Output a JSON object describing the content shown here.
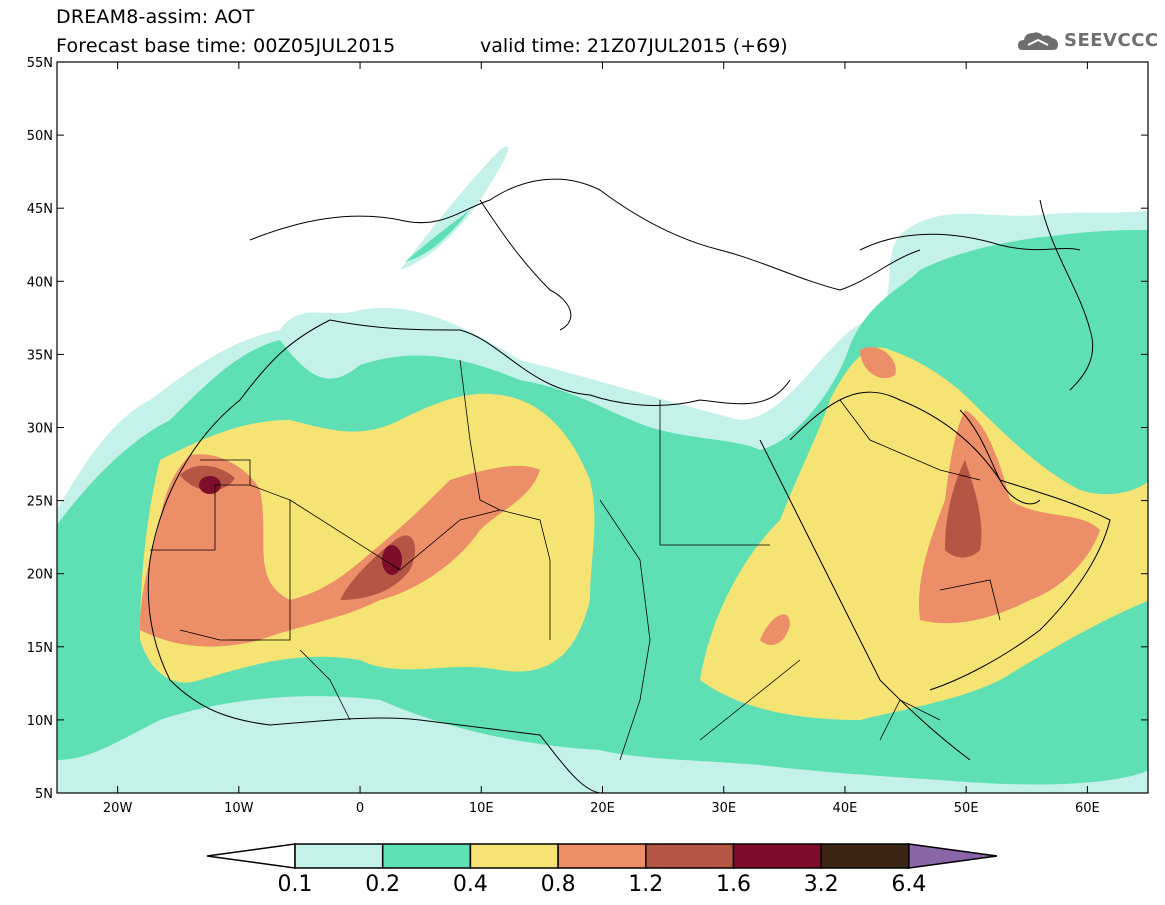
{
  "header": {
    "title_line1": "DREAM8-assim: AOT",
    "title_line2": "Forecast base time: 00Z05JUL2015",
    "valid_time": "valid time: 21Z07JUL2015 (+69)",
    "logo_text": "SEEVCCC"
  },
  "map": {
    "lon_range": [
      -25,
      65
    ],
    "lat_range": [
      5,
      55
    ],
    "lat_ticks": [
      "55N",
      "50N",
      "45N",
      "40N",
      "35N",
      "30N",
      "25N",
      "20N",
      "15N",
      "10N",
      "5N"
    ],
    "lon_ticks": [
      "20W",
      "10W",
      "0",
      "10E",
      "20E",
      "30E",
      "40E",
      "50E",
      "60E"
    ],
    "land_color": "#ffffff",
    "coast_color": "#000000"
  },
  "colorbar": {
    "labels": [
      "0.1",
      "0.2",
      "0.4",
      "0.8",
      "1.2",
      "1.6",
      "3.2",
      "6.4"
    ],
    "colors": [
      "#c4f1ea",
      "#5fe0b4",
      "#f5e473",
      "#ec8e67",
      "#b55543",
      "#7d0d2a",
      "#3c2413"
    ],
    "under_color": "#ffffff",
    "over_color": "#8a66a8"
  }
}
